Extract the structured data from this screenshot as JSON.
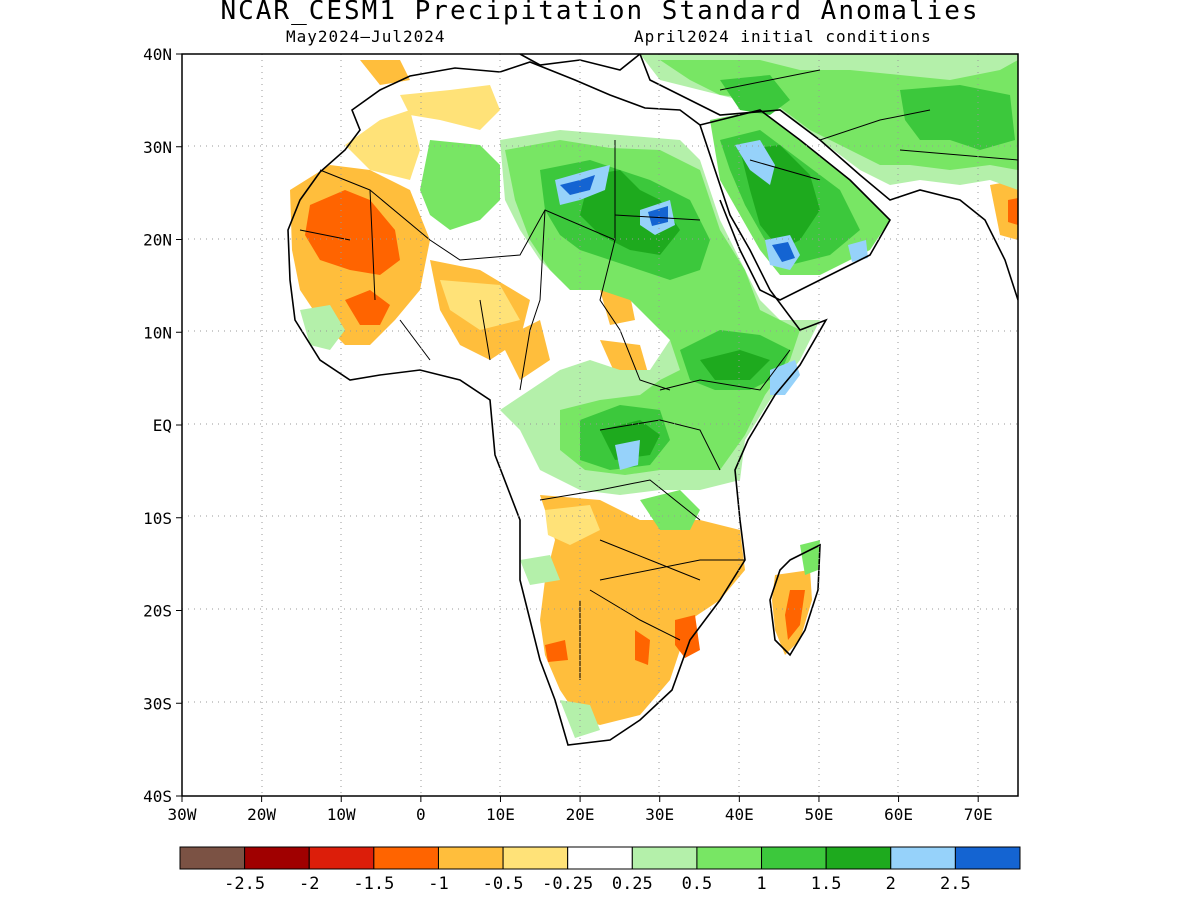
{
  "title": "NCAR_CESM1 Precipitation Standard Anomalies",
  "subtitle_left": "May2024–Jul2024",
  "subtitle_right": "April2024 initial conditions",
  "map": {
    "region": "Africa",
    "lon_range": [
      -30,
      75
    ],
    "lat_range": [
      -40,
      40
    ],
    "y_ticks": [
      "40N",
      "30N",
      "20N",
      "10N",
      "EQ",
      "10S",
      "20S",
      "30S",
      "40S"
    ],
    "x_ticks": [
      "30W",
      "20W",
      "10W",
      "0",
      "10E",
      "20E",
      "30E",
      "40E",
      "50E",
      "60E",
      "70E"
    ],
    "grid": "dotted"
  },
  "colorbar": {
    "colors": [
      "#7b5244",
      "#a00000",
      "#dc1e0a",
      "#ff6400",
      "#ffbe3c",
      "#ffe278",
      "#ffffff",
      "#b4f0aa",
      "#78e664",
      "#3cc83c",
      "#1eaa1e",
      "#96d2fa",
      "#1464d2"
    ],
    "labels": [
      "-2.5",
      "-2",
      "-1.5",
      "-1",
      "-0.5",
      "-0.25",
      "0.25",
      "0.5",
      "1",
      "1.5",
      "2",
      "2.5"
    ]
  }
}
